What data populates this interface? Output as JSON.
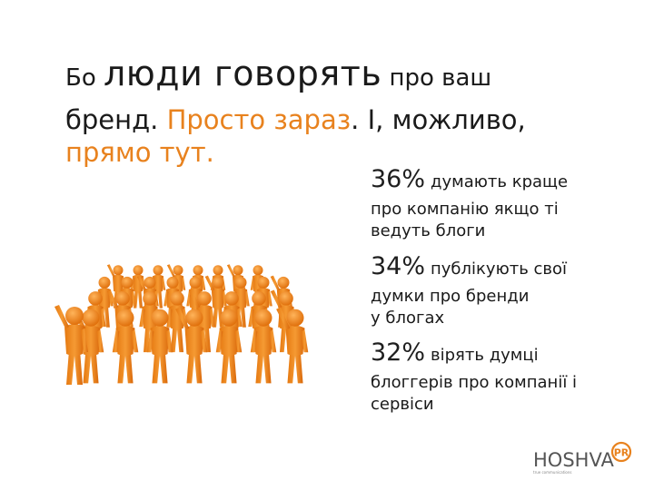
{
  "heading": {
    "part1": "Бо ",
    "part2_big": "люди говорять",
    "part3": " про ваш",
    "line2_a": "бренд. ",
    "line2_b_orange": "Просто зараз",
    "line2_c": ". І, можливо,",
    "line3_orange": "прямо тут."
  },
  "stats": [
    {
      "pct": "36%",
      "lead": "думають краще",
      "rest": "про компанію якщо ті ведуть блоги"
    },
    {
      "pct": "34%",
      "lead": "публікують свої",
      "rest": "думки про бренди у блогах"
    },
    {
      "pct": "32%",
      "lead": "вірять думці",
      "rest": "блоггерів про компанії і сервіси"
    }
  ],
  "logo": {
    "text": "HOSHVA",
    "badge": "PR",
    "subtitle": "true communications"
  },
  "colors": {
    "accent": "#e8821e",
    "figure": "#f08a1a",
    "text": "#1a1a1a"
  }
}
